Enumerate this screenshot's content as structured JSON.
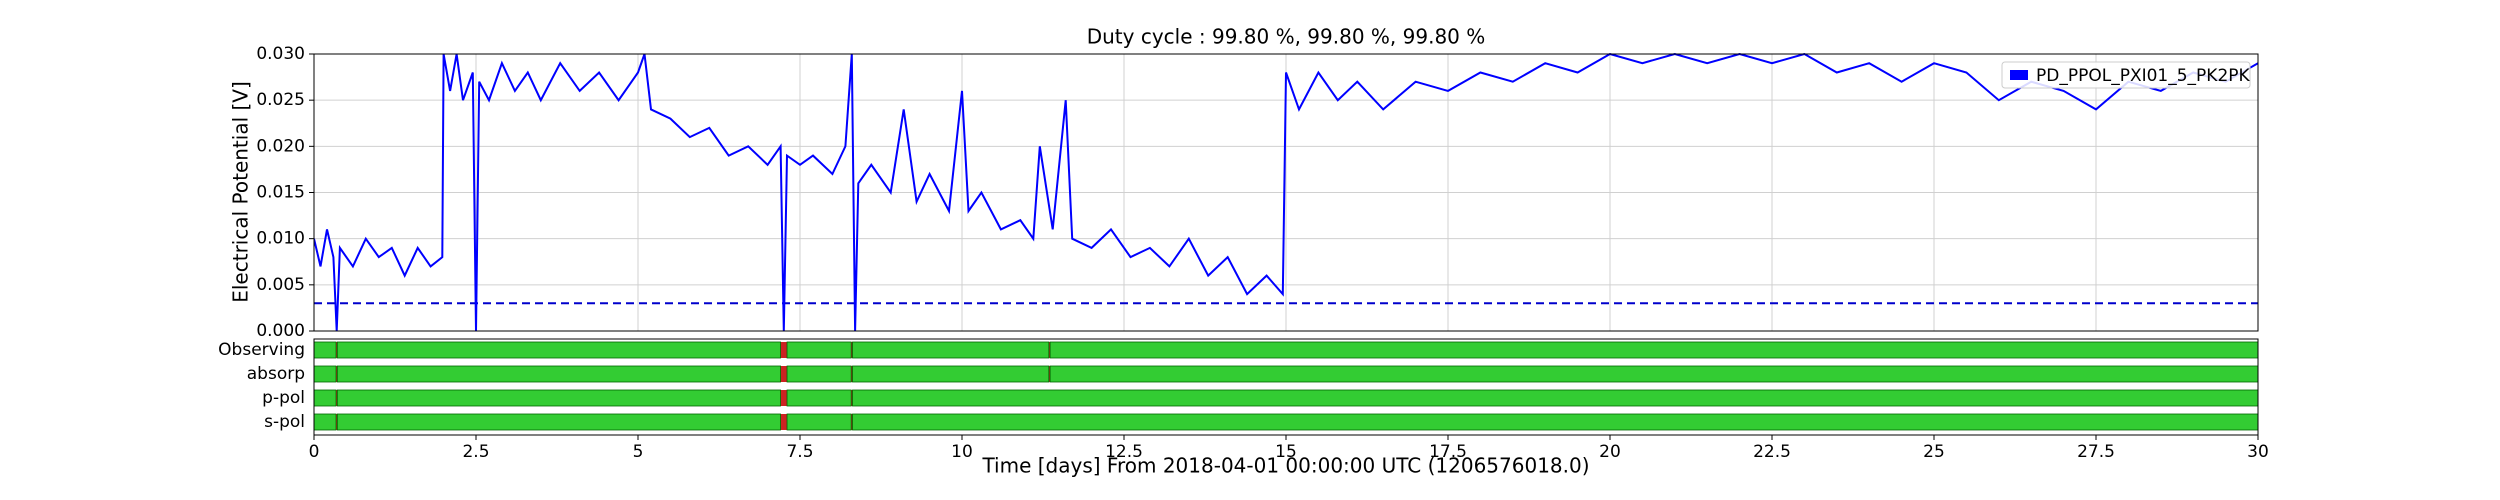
{
  "chart_data": {
    "type": "line",
    "title": "Duty cycle : 99.80 %, 99.80 %, 99.80 %",
    "y_label": "Electrical Potential [V]",
    "x_label": "Time [days] From 2018-04-01 00:00:00 UTC (1206576018.0)",
    "xlim": [
      0,
      30
    ],
    "xticks": [
      0,
      2.5,
      5,
      7.5,
      10,
      12.5,
      15,
      17.5,
      20,
      22.5,
      25,
      27.5,
      30
    ],
    "ylim": [
      0,
      0.03
    ],
    "yticks": [
      {
        "value": 0,
        "label": "0.000"
      },
      {
        "value": 0.005,
        "label": "0.005"
      },
      {
        "value": 0.01,
        "label": "0.010"
      },
      {
        "value": 0.015,
        "label": "0.015"
      },
      {
        "value": 0.02,
        "label": "0.020"
      },
      {
        "value": 0.025,
        "label": "0.025"
      },
      {
        "value": 0.03,
        "label": "0.030"
      }
    ],
    "grid": true,
    "legend": "upper right",
    "threshold": 0.003,
    "x": [
      0,
      0.1,
      0.2,
      0.3,
      0.35,
      0.4,
      0.6,
      0.8,
      1.0,
      1.2,
      1.4,
      1.6,
      1.8,
      1.98,
      2.0,
      2.1,
      2.2,
      2.3,
      2.45,
      2.5,
      2.55,
      2.7,
      2.9,
      3.1,
      3.3,
      3.5,
      3.8,
      4.1,
      4.4,
      4.7,
      5.0,
      5.1,
      5.2,
      5.5,
      5.8,
      6.1,
      6.4,
      6.7,
      7.0,
      7.2,
      7.25,
      7.3,
      7.5,
      7.7,
      8.0,
      8.2,
      8.3,
      8.35,
      8.4,
      8.6,
      8.9,
      9.1,
      9.3,
      9.5,
      9.8,
      10.0,
      10.1,
      10.3,
      10.6,
      10.9,
      11.1,
      11.2,
      11.4,
      11.6,
      11.7,
      12.0,
      12.3,
      12.6,
      12.9,
      13.2,
      13.5,
      13.8,
      14.1,
      14.4,
      14.7,
      14.95,
      15.0,
      15.2,
      15.5,
      15.8,
      16.1,
      16.5,
      17.0,
      17.5,
      18.0,
      18.5,
      19.0,
      19.5,
      20.0,
      20.5,
      21.0,
      21.5,
      22.0,
      22.5,
      23.0,
      23.5,
      24.0,
      24.5,
      25.0,
      25.5,
      26.0,
      26.5,
      27.0,
      27.5,
      28.0,
      28.5,
      29.0,
      29.5,
      30.0
    ],
    "series": [
      {
        "name": "PD_PPOL_PXI01_5_PK2PK",
        "color": "#0000ff",
        "values": [
          0.01,
          0.007,
          0.011,
          0.008,
          0.0,
          0.009,
          0.007,
          0.01,
          0.008,
          0.009,
          0.006,
          0.009,
          0.007,
          0.008,
          0.03,
          0.026,
          0.03,
          0.025,
          0.028,
          0.0,
          0.027,
          0.025,
          0.029,
          0.026,
          0.028,
          0.025,
          0.029,
          0.026,
          0.028,
          0.025,
          0.028,
          0.03,
          0.024,
          0.023,
          0.021,
          0.022,
          0.019,
          0.02,
          0.018,
          0.02,
          0.0,
          0.019,
          0.018,
          0.019,
          0.017,
          0.02,
          0.03,
          0.0,
          0.016,
          0.018,
          0.015,
          0.024,
          0.014,
          0.017,
          0.013,
          0.026,
          0.013,
          0.015,
          0.011,
          0.012,
          0.01,
          0.02,
          0.011,
          0.025,
          0.01,
          0.009,
          0.011,
          0.008,
          0.009,
          0.007,
          0.01,
          0.006,
          0.008,
          0.004,
          0.006,
          0.004,
          0.028,
          0.024,
          0.028,
          0.025,
          0.027,
          0.024,
          0.027,
          0.026,
          0.028,
          0.027,
          0.029,
          0.028,
          0.03,
          0.029,
          0.03,
          0.029,
          0.03,
          0.029,
          0.03,
          0.028,
          0.029,
          0.027,
          0.029,
          0.028,
          0.025,
          0.027,
          0.026,
          0.024,
          0.027,
          0.026,
          0.028,
          0.027,
          0.029
        ]
      }
    ],
    "flags": [
      {
        "name": "Observing",
        "known": [
          [
            0,
            30
          ]
        ],
        "active": [
          [
            0,
            0.34
          ],
          [
            0.36,
            7.2
          ],
          [
            7.3,
            8.29
          ],
          [
            8.31,
            11.34
          ],
          [
            11.36,
            30
          ]
        ]
      },
      {
        "name": "absorp",
        "known": [
          [
            0,
            30
          ]
        ],
        "active": [
          [
            0,
            0.34
          ],
          [
            0.36,
            7.2
          ],
          [
            7.3,
            8.29
          ],
          [
            8.31,
            11.34
          ],
          [
            11.36,
            30
          ]
        ]
      },
      {
        "name": "p-pol",
        "known": [
          [
            0,
            30
          ]
        ],
        "active": [
          [
            0,
            0.34
          ],
          [
            0.36,
            7.2
          ],
          [
            7.3,
            8.29
          ],
          [
            8.31,
            30
          ]
        ]
      },
      {
        "name": "s-pol",
        "known": [
          [
            0,
            30
          ]
        ],
        "active": [
          [
            0,
            0.34
          ],
          [
            0.36,
            7.2
          ],
          [
            7.3,
            8.29
          ],
          [
            8.31,
            30
          ]
        ]
      }
    ]
  }
}
